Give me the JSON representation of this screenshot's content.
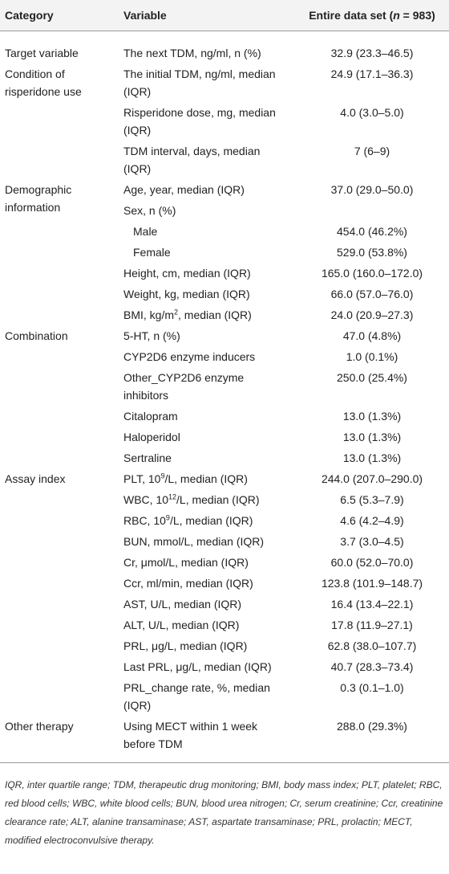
{
  "table": {
    "header": {
      "category": "Category",
      "variable": "Variable",
      "value": {
        "before": "Entire data set (",
        "italic": "n",
        "after": " = 983)"
      }
    },
    "groups": [
      {
        "category": "Target variable",
        "rows": [
          {
            "variable": "The next TDM, ng/ml, n (%)",
            "value": "32.9 (23.3–46.5)"
          }
        ]
      },
      {
        "category": "Condition of risperidone use",
        "rows": [
          {
            "variable": "The initial TDM, ng/ml, median (IQR)",
            "value": "24.9 (17.1–36.3)"
          },
          {
            "variable": "Risperidone dose, mg, median (IQR)",
            "value": "4.0 (3.0–5.0)"
          },
          {
            "variable": "TDM interval, days, median (IQR)",
            "value": "7 (6–9)"
          }
        ]
      },
      {
        "category": "Demographic information",
        "rows": [
          {
            "variable": "Age, year, median (IQR)",
            "value": "37.0 (29.0–50.0)"
          },
          {
            "variable": "Sex, n (%)",
            "items": [
              {
                "variable": "Male",
                "value": "454.0 (46.2%)"
              },
              {
                "variable": "Female",
                "value": "529.0 (53.8%)"
              }
            ]
          },
          {
            "variable": "Height, cm, median (IQR)",
            "value": "165.0 (160.0–172.0)"
          },
          {
            "variable": "Weight, kg, median (IQR)",
            "value": "66.0 (57.0–76.0)"
          },
          {
            "variable": {
              "before": "BMI, kg/m",
              "sup": "2",
              "after": ", median (IQR)"
            },
            "value": "24.0 (20.9–27.3)"
          }
        ]
      },
      {
        "category": "Combination",
        "rows": [
          {
            "variable": "5-HT, n (%)",
            "value": "47.0 (4.8%)"
          },
          {
            "variable": "CYP2D6 enzyme inducers",
            "value": "1.0 (0.1%)"
          },
          {
            "variable": "Other_CYP2D6 enzyme inhibitors",
            "value": "250.0 (25.4%)"
          },
          {
            "variable": "Citalopram",
            "value": "13.0 (1.3%)"
          },
          {
            "variable": "Haloperidol",
            "value": "13.0 (1.3%)"
          },
          {
            "variable": "Sertraline",
            "value": "13.0 (1.3%)"
          }
        ]
      },
      {
        "category": "Assay index",
        "rows": [
          {
            "variable": {
              "before": "PLT, 10",
              "sup": "9",
              "after": "/L, median (IQR)"
            },
            "value": "244.0 (207.0–290.0)"
          },
          {
            "variable": {
              "before": "WBC, 10",
              "sup": "12",
              "after": "/L, median (IQR)"
            },
            "value": "6.5 (5.3–7.9)"
          },
          {
            "variable": {
              "before": "RBC, 10",
              "sup": "9",
              "after": "/L, median (IQR)"
            },
            "value": "4.6 (4.2–4.9)"
          },
          {
            "variable": "BUN, mmol/L, median (IQR)",
            "value": "3.7 (3.0–4.5)"
          },
          {
            "variable": "Cr, μmol/L, median (IQR)",
            "value": "60.0 (52.0–70.0)"
          },
          {
            "variable": "Ccr, ml/min, median (IQR)",
            "value": "123.8 (101.9–148.7)"
          },
          {
            "variable": "AST, U/L, median (IQR)",
            "value": "16.4 (13.4–22.1)"
          },
          {
            "variable": "ALT, U/L, median (IQR)",
            "value": "17.8 (11.9–27.1)"
          },
          {
            "variable": "PRL, μg/L, median (IQR)",
            "value": "62.8 (38.0–107.7)"
          },
          {
            "variable": "Last PRL, μg/L, median (IQR)",
            "value": "40.7 (28.3–73.4)"
          },
          {
            "variable": "PRL_change rate, %, median (IQR)",
            "value": "0.3 (0.1–1.0)"
          }
        ]
      },
      {
        "category": "Other therapy",
        "rows": [
          {
            "variable": "Using MECT within 1 week before TDM",
            "value": "288.0 (29.3%)"
          }
        ]
      }
    ]
  },
  "footnote": "IQR, inter quartile range; TDM, therapeutic drug monitoring; BMI, body mass index; PLT, platelet; RBC, red blood cells; WBC, white blood cells; BUN, blood urea nitrogen; Cr, serum creatinine; Ccr, creatinine clearance rate; ALT, alanine transaminase; AST, aspartate transaminase; PRL, prolactin; MECT, modified electroconvulsive therapy."
}
